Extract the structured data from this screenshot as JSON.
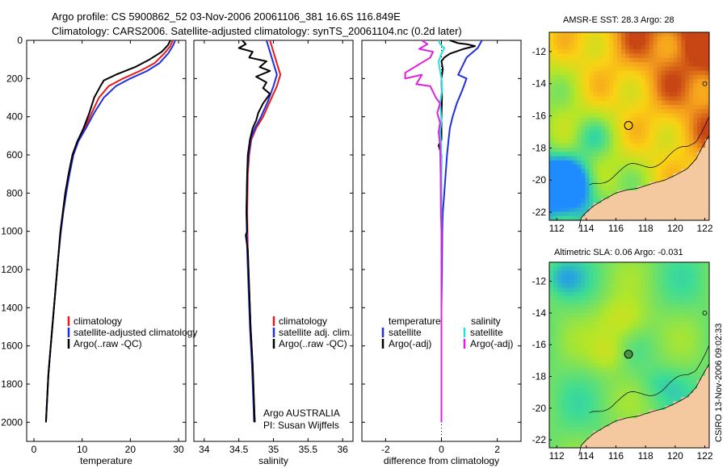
{
  "figure": {
    "title_line1": "Argo profile: CS 5900862_52 03-Nov-2006 20061106_381 16.6S 116.849E",
    "title_line2": "Climatology: CARS2006. Satellite-adjusted climatology: synTS_20061104.nc (0.2d later)",
    "side_label": "CSIRO 13-Nov-2006 09:02:33"
  },
  "colors": {
    "climatology": "#e41a1c",
    "satellite": "#1f2ee0",
    "argo": "#000000",
    "sal_satellite": "#22e0e0",
    "sal_argo": "#e020e0",
    "land": "#f4c9a0"
  },
  "chart_data": [
    {
      "id": "temperature",
      "type": "line",
      "xlabel": "temperature",
      "xlim": [
        -1.5,
        31.5
      ],
      "xticks": [
        0,
        10,
        20,
        30
      ],
      "ylim": [
        0,
        2100
      ],
      "yticks": [
        0,
        200,
        400,
        600,
        800,
        1000,
        1200,
        1400,
        1600,
        1800,
        2000
      ],
      "legend": [
        "climatology",
        "satellite-adjusted climatology",
        "Argo(..raw -QC)"
      ],
      "series": [
        {
          "name": "climatology",
          "color": "climatology",
          "points": [
            [
              28.8,
              0
            ],
            [
              28.3,
              30
            ],
            [
              27.0,
              70
            ],
            [
              25.0,
              120
            ],
            [
              22.0,
              160
            ],
            [
              18.5,
              200
            ],
            [
              15.5,
              240
            ],
            [
              13.5,
              300
            ],
            [
              12.0,
              380
            ],
            [
              10.5,
              460
            ],
            [
              9.0,
              530
            ],
            [
              8.0,
              600
            ],
            [
              7.2,
              700
            ],
            [
              6.5,
              800
            ],
            [
              6.0,
              900
            ],
            [
              5.5,
              1000
            ],
            [
              5.0,
              1150
            ],
            [
              4.5,
              1300
            ],
            [
              4.0,
              1450
            ],
            [
              3.5,
              1600
            ],
            [
              3.0,
              1750
            ],
            [
              2.8,
              1850
            ],
            [
              2.6,
              1950
            ],
            [
              2.5,
              2000
            ]
          ]
        },
        {
          "name": "satellite",
          "color": "satellite",
          "points": [
            [
              29.3,
              0
            ],
            [
              28.8,
              30
            ],
            [
              27.8,
              70
            ],
            [
              26.0,
              120
            ],
            [
              23.5,
              160
            ],
            [
              20.0,
              200
            ],
            [
              17.0,
              240
            ],
            [
              14.5,
              300
            ],
            [
              12.5,
              380
            ],
            [
              10.8,
              460
            ],
            [
              9.2,
              530
            ],
            [
              8.2,
              600
            ],
            [
              7.4,
              700
            ],
            [
              6.7,
              800
            ],
            [
              6.1,
              900
            ],
            [
              5.6,
              1000
            ],
            [
              5.0,
              1150
            ],
            [
              4.5,
              1300
            ],
            [
              4.0,
              1450
            ],
            [
              3.5,
              1600
            ],
            [
              3.0,
              1750
            ],
            [
              2.8,
              1850
            ],
            [
              2.6,
              1950
            ],
            [
              2.5,
              2000
            ]
          ]
        },
        {
          "name": "Argo",
          "color": "argo",
          "points": [
            [
              28.3,
              0
            ],
            [
              27.8,
              25
            ],
            [
              26.5,
              60
            ],
            [
              24.0,
              100
            ],
            [
              21.0,
              140
            ],
            [
              17.0,
              180
            ],
            [
              14.5,
              210
            ],
            [
              13.8,
              240
            ],
            [
              12.5,
              300
            ],
            [
              11.5,
              380
            ],
            [
              10.3,
              460
            ],
            [
              9.0,
              530
            ],
            [
              8.0,
              600
            ],
            [
              7.2,
              700
            ],
            [
              6.5,
              800
            ],
            [
              6.0,
              900
            ],
            [
              5.5,
              1000
            ],
            [
              5.0,
              1150
            ],
            [
              4.5,
              1300
            ],
            [
              4.0,
              1450
            ],
            [
              3.5,
              1600
            ],
            [
              3.0,
              1750
            ],
            [
              2.8,
              1850
            ],
            [
              2.6,
              1950
            ],
            [
              2.5,
              2000
            ]
          ]
        }
      ]
    },
    {
      "id": "salinity",
      "type": "line",
      "xlabel": "salinity",
      "xlim": [
        33.85,
        36.15
      ],
      "xticks": [
        34,
        34.5,
        35,
        35.5,
        36
      ],
      "ylim": [
        0,
        2100
      ],
      "legend": [
        "climatology",
        "satellite adj. clim.",
        "Argo(..raw -QC)"
      ],
      "annotation": [
        "Argo AUSTRALIA",
        "PI: Susan Wijffels"
      ],
      "series": [
        {
          "name": "climatology",
          "color": "climatology",
          "points": [
            [
              34.95,
              0
            ],
            [
              35.0,
              60
            ],
            [
              35.05,
              120
            ],
            [
              35.1,
              180
            ],
            [
              35.05,
              240
            ],
            [
              34.95,
              320
            ],
            [
              34.85,
              400
            ],
            [
              34.75,
              460
            ],
            [
              34.68,
              520
            ],
            [
              34.65,
              600
            ],
            [
              34.63,
              700
            ],
            [
              34.62,
              900
            ],
            [
              34.63,
              1100
            ],
            [
              34.65,
              1300
            ],
            [
              34.67,
              1500
            ],
            [
              34.7,
              1700
            ],
            [
              34.72,
              1900
            ],
            [
              34.73,
              2000
            ]
          ]
        },
        {
          "name": "satellite",
          "color": "satellite",
          "points": [
            [
              34.9,
              0
            ],
            [
              34.95,
              60
            ],
            [
              35.0,
              120
            ],
            [
              35.05,
              180
            ],
            [
              35.0,
              240
            ],
            [
              34.92,
              320
            ],
            [
              34.82,
              400
            ],
            [
              34.73,
              460
            ],
            [
              34.67,
              520
            ],
            [
              34.64,
              600
            ],
            [
              34.62,
              700
            ],
            [
              34.61,
              900
            ],
            [
              34.62,
              1100
            ],
            [
              34.64,
              1300
            ],
            [
              34.66,
              1500
            ],
            [
              34.69,
              1700
            ],
            [
              34.71,
              1900
            ],
            [
              34.72,
              2000
            ]
          ]
        },
        {
          "name": "Argo",
          "color": "argo",
          "points": [
            [
              34.55,
              0
            ],
            [
              34.6,
              20
            ],
            [
              34.5,
              40
            ],
            [
              34.7,
              60
            ],
            [
              34.65,
              90
            ],
            [
              34.9,
              110
            ],
            [
              34.8,
              140
            ],
            [
              34.95,
              160
            ],
            [
              34.75,
              190
            ],
            [
              34.9,
              220
            ],
            [
              34.85,
              250
            ],
            [
              34.95,
              280
            ],
            [
              34.85,
              330
            ],
            [
              34.78,
              380
            ],
            [
              34.75,
              420
            ],
            [
              34.7,
              460
            ],
            [
              34.66,
              520
            ],
            [
              34.63,
              600
            ],
            [
              34.62,
              700
            ],
            [
              34.61,
              900
            ],
            [
              34.62,
              1000
            ],
            [
              34.6,
              1020
            ],
            [
              34.63,
              1100
            ],
            [
              34.65,
              1300
            ],
            [
              34.67,
              1500
            ],
            [
              34.7,
              1700
            ],
            [
              34.72,
              1900
            ],
            [
              34.73,
              2000
            ]
          ]
        }
      ]
    },
    {
      "id": "difference",
      "type": "line",
      "xlabel": "difference from climatology",
      "xlim": [
        -2.85,
        2.85
      ],
      "xticks": [
        -2,
        0,
        2
      ],
      "ylim": [
        0,
        2100
      ],
      "legend_left_title": "temperature",
      "legend_right_title": "salinity",
      "legend_left": [
        "satellite",
        "Argo(-adj)"
      ],
      "legend_right": [
        "satellite",
        "Argo(-adj)"
      ],
      "series": [
        {
          "name": "temperature satellite",
          "color": "satellite",
          "points": [
            [
              1.45,
              0
            ],
            [
              1.3,
              40
            ],
            [
              0.9,
              90
            ],
            [
              0.7,
              150
            ],
            [
              0.6,
              180
            ],
            [
              0.9,
              200
            ],
            [
              0.75,
              260
            ],
            [
              0.55,
              330
            ],
            [
              0.4,
              400
            ],
            [
              0.3,
              460
            ],
            [
              0.25,
              530
            ],
            [
              0.2,
              600
            ],
            [
              0.15,
              700
            ],
            [
              0.1,
              800
            ],
            [
              0.05,
              900
            ],
            [
              0.03,
              1000
            ],
            [
              0.02,
              1200
            ],
            [
              0.0,
              1400
            ],
            [
              0.0,
              2000
            ]
          ]
        },
        {
          "name": "temperature Argo(-adj)",
          "color": "argo",
          "points": [
            [
              0.3,
              0
            ],
            [
              0.6,
              15
            ],
            [
              0.9,
              20
            ],
            [
              1.2,
              30
            ],
            [
              0.8,
              45
            ],
            [
              0.3,
              70
            ],
            [
              0.1,
              90
            ],
            [
              0.0,
              110
            ],
            [
              0.05,
              150
            ],
            [
              0.0,
              200
            ],
            [
              0.02,
              300
            ],
            [
              0.0,
              400
            ],
            [
              0.0,
              520
            ],
            [
              -0.1,
              550
            ],
            [
              0.0,
              600
            ],
            [
              0.0,
              2000
            ]
          ]
        },
        {
          "name": "salinity satellite",
          "color": "sal_satellite",
          "points": [
            [
              -0.1,
              0
            ],
            [
              -0.05,
              20
            ],
            [
              0.1,
              40
            ],
            [
              0.0,
              70
            ],
            [
              -0.1,
              110
            ],
            [
              -0.05,
              160
            ],
            [
              0.0,
              200
            ],
            [
              0.02,
              260
            ],
            [
              -0.05,
              330
            ],
            [
              0.0,
              420
            ],
            [
              -0.05,
              480
            ],
            [
              -0.01,
              550
            ],
            [
              0.0,
              700
            ],
            [
              0.0,
              900
            ],
            [
              0.0,
              2000
            ]
          ]
        },
        {
          "name": "salinity Argo(-adj)",
          "color": "sal_argo",
          "points": [
            [
              -0.7,
              0
            ],
            [
              -0.5,
              20
            ],
            [
              -0.8,
              45
            ],
            [
              -0.3,
              60
            ],
            [
              -0.4,
              90
            ],
            [
              -1.3,
              170
            ],
            [
              -1.3,
              200
            ],
            [
              -0.7,
              180
            ],
            [
              -0.9,
              230
            ],
            [
              -0.4,
              240
            ],
            [
              -0.2,
              300
            ],
            [
              -0.05,
              330
            ],
            [
              -0.15,
              380
            ],
            [
              -0.05,
              430
            ],
            [
              -0.1,
              480
            ],
            [
              -0.05,
              550
            ],
            [
              -0.03,
              700
            ],
            [
              -0.02,
              900
            ],
            [
              0.0,
              1000
            ],
            [
              0.0,
              2000
            ]
          ]
        }
      ]
    },
    {
      "id": "sst_map",
      "type": "heatmap",
      "title": "AMSR-E SST: 28.3 Argo: 28",
      "xlim": [
        111.5,
        122.3
      ],
      "ylim": [
        -22.5,
        -10.8
      ],
      "xticks": [
        112,
        114,
        116,
        118,
        120,
        122
      ],
      "yticks": [
        -12,
        -14,
        -16,
        -18,
        -20,
        -22
      ],
      "marker": [
        116.85,
        -16.6
      ]
    },
    {
      "id": "sla_map",
      "type": "heatmap",
      "title": "Altimetric SLA: 0.06 Argo: -0.031",
      "xlim": [
        111.5,
        122.3
      ],
      "ylim": [
        -22.5,
        -10.8
      ],
      "xticks": [
        112,
        114,
        116,
        118,
        120,
        122
      ],
      "yticks": [
        -12,
        -14,
        -16,
        -18,
        -20,
        -22
      ],
      "marker": [
        116.85,
        -16.6
      ]
    }
  ]
}
